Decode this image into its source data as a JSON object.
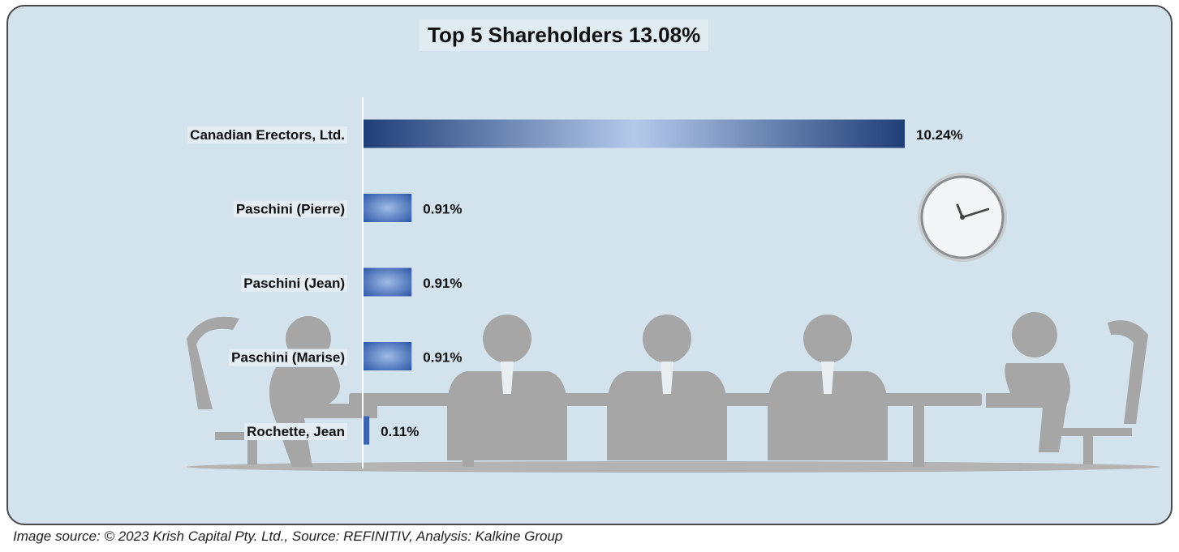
{
  "footer": {
    "source_text": "Image source: © 2023 Krish Capital Pty. Ltd., Source: REFINITIV, Analysis: Kalkine Group"
  },
  "colors": {
    "panel_background": "#d3e3ed",
    "bar_dark": "#203f78",
    "bar_light": "#b4c9ea",
    "silhouette": "#a6a6a6"
  },
  "decorations": [
    "meeting-table-silhouette",
    "wall-clock-icon"
  ],
  "chart_data": {
    "type": "bar",
    "orientation": "horizontal",
    "title": "Top 5 Shareholders 13.08%",
    "categories": [
      "Canadian Erectors, Ltd.",
      "Paschini (Pierre)",
      "Paschini (Jean)",
      "Paschini (Marise)",
      "Rochette, Jean"
    ],
    "values": [
      10.24,
      0.91,
      0.91,
      0.91,
      0.11
    ],
    "data_labels": [
      "10.24%",
      "0.91%",
      "0.91%",
      "0.91%",
      "0.11%"
    ],
    "unit": "%",
    "xlim": [
      0,
      10.24
    ],
    "grid": false,
    "legend": "none"
  }
}
